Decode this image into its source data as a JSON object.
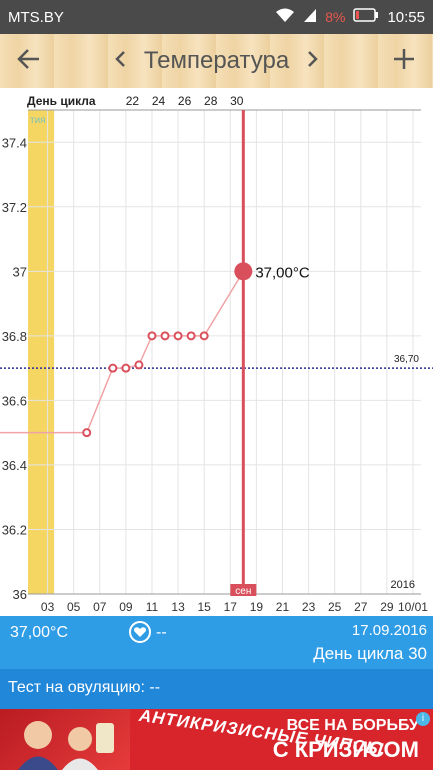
{
  "status_bar": {
    "carrier": "MTS.BY",
    "battery": "8%",
    "time": "10:55"
  },
  "app_bar": {
    "title": "Температура",
    "back_icon": "arrow-left-icon",
    "prev_icon": "chevron-left-icon",
    "next_icon": "chevron-right-icon",
    "add_icon": "plus-icon"
  },
  "chart_data": {
    "type": "line",
    "top_axis_label": "День цикла",
    "cycle_day_ticks": [
      "22",
      "24",
      "26",
      "28",
      "30"
    ],
    "x_dates": [
      "03",
      "05",
      "07",
      "09",
      "11",
      "13",
      "15",
      "17",
      "19",
      "21",
      "23",
      "25",
      "27",
      "29",
      "10/01"
    ],
    "y_ticks": [
      "37.4",
      "37.2",
      "37",
      "36.8",
      "36.6",
      "36.4",
      "36.2",
      "36"
    ],
    "ylim": [
      36.0,
      37.5
    ],
    "period_label": "тия",
    "month_marker": "сен",
    "year_label": "2016",
    "coverline_label": "36,70",
    "coverline_value": 36.7,
    "selected_label": "37,00°C",
    "series": [
      {
        "points": [
          {
            "day": 1,
            "y": 36.5
          },
          {
            "day": 5,
            "y": 36.5
          },
          {
            "day": 7,
            "y": 36.7
          },
          {
            "day": 8,
            "y": 36.7
          },
          {
            "day": 9,
            "y": 36.71
          },
          {
            "day": 10,
            "y": 36.8
          },
          {
            "day": 11,
            "y": 36.8
          },
          {
            "day": 12,
            "y": 36.8
          },
          {
            "day": 13,
            "y": 36.8
          },
          {
            "day": 14,
            "y": 36.8
          },
          {
            "day": 17,
            "y": 37.0
          }
        ]
      }
    ],
    "selected_day": 17,
    "period_days": [
      1,
      2
    ]
  },
  "info_bar": {
    "temperature": "37,00°C",
    "heart_value": "--",
    "date": "17.09.2016",
    "cycle_day": "День цикла 30"
  },
  "ovulation_row": {
    "text": "Тест на овуляцию: --"
  },
  "ad": {
    "mid_text": "АНТИКРИЗИСНЫЕ ЧИПСЫ",
    "right_top": "ВСЕ НА БОРЬБУ",
    "right_bottom": "С КРИЗИСОМ",
    "info_icon": "info-icon"
  },
  "colors": {
    "accent_red": "#d9505c",
    "coverline": "#2a2a9a",
    "period_fill": "#f5d663",
    "info_blue": "#2f9ce6"
  }
}
